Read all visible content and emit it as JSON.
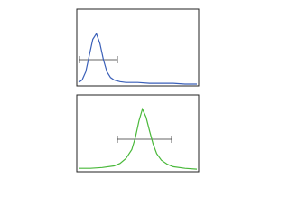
{
  "chart_data": [
    {
      "type": "line",
      "x": [
        0,
        3,
        6,
        9,
        12,
        15,
        18,
        21,
        24,
        27,
        30,
        35,
        40,
        50,
        60,
        70,
        80,
        90,
        100
      ],
      "series": [
        {
          "color": "#3a5fb8",
          "values": [
            2,
            5,
            15,
            35,
            55,
            62,
            50,
            30,
            15,
            8,
            5,
            3,
            2,
            2,
            1,
            1,
            1,
            0,
            0
          ]
        }
      ],
      "xlim": [
        0,
        100
      ],
      "ylim": [
        0,
        90
      ]
    },
    {
      "type": "line",
      "x": [
        0,
        10,
        20,
        30,
        35,
        40,
        45,
        48,
        51,
        54,
        57,
        60,
        63,
        66,
        70,
        75,
        80,
        90,
        100
      ],
      "series": [
        {
          "color": "#49b83a",
          "values": [
            2,
            2,
            3,
            5,
            8,
            14,
            25,
            40,
            60,
            75,
            65,
            48,
            32,
            20,
            12,
            7,
            4,
            2,
            1
          ]
        }
      ],
      "xlim": [
        0,
        100
      ],
      "ylim": [
        0,
        90
      ]
    }
  ]
}
